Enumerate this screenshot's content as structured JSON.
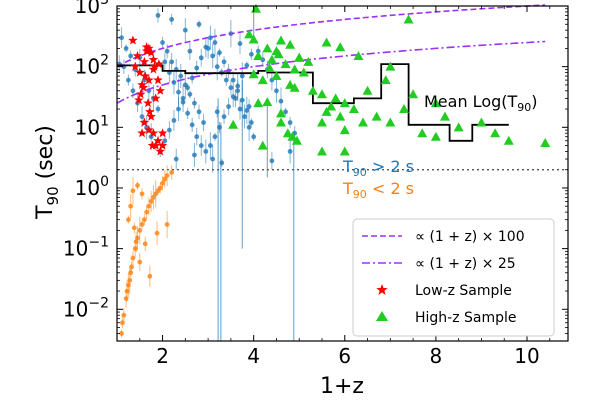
{
  "chart_data": {
    "type": "scatter",
    "xlabel": "1+z",
    "ylabel_main": "T",
    "ylabel_sub": "90",
    "ylabel_unit": " (sec)",
    "xlim": [
      1.0,
      10.9
    ],
    "ylim": [
      0.003,
      1000
    ],
    "yscale": "log",
    "xticks": [
      2,
      4,
      6,
      8,
      10
    ],
    "yticks": [
      {
        "value": 0.01,
        "base": "10",
        "exp": "−2"
      },
      {
        "value": 0.1,
        "base": "10",
        "exp": "−1"
      },
      {
        "value": 1,
        "base": "10",
        "exp": "0"
      },
      {
        "value": 10,
        "base": "10",
        "exp": "1"
      },
      {
        "value": 100,
        "base": "10",
        "exp": "2"
      },
      {
        "value": 1000,
        "base": "10",
        "exp": "3"
      }
    ],
    "threshold": {
      "value": 2
    },
    "annotations": {
      "mean_label": "Mean Log(T",
      "mean_sub": "90",
      "mean_close": ")",
      "above": {
        "pre": "T",
        "sub": "90",
        "post": " > 2 s",
        "color": "#1f77b4"
      },
      "below": {
        "pre": "T",
        "sub": "90",
        "post": " < 2 s",
        "color": "#ff7f0e"
      }
    },
    "legend": {
      "placement": "lower right",
      "entries": [
        {
          "label": "∝ (1 + z) × 100",
          "style": "dashed",
          "color": "#9b30ff"
        },
        {
          "label": "∝ (1 + z) × 25",
          "style": "dashdot",
          "color": "#9b30ff"
        },
        {
          "label": "Low-z Sample",
          "marker": "star",
          "color": "#ff0000"
        },
        {
          "label": "High-z Sample",
          "marker": "triangle",
          "color": "#22cc22"
        }
      ]
    },
    "curves": [
      {
        "name": "∝ (1 + z) × 100",
        "factor": 100,
        "x_from": 1.0,
        "x_to": 10.4,
        "style": "dashed",
        "color": "#9b30ff"
      },
      {
        "name": "∝ (1 + z) × 25",
        "factor": 25,
        "x_from": 1.0,
        "x_to": 10.4,
        "style": "dashdot",
        "color": "#9b30ff"
      }
    ],
    "mean_steps": {
      "color": "#000000",
      "edges": [
        1.0,
        1.5,
        2.0,
        2.5,
        3.0,
        3.5,
        4.1,
        4.3,
        4.8,
        5.3,
        6.2,
        6.8,
        7.4,
        7.6,
        8.3,
        8.8,
        9.1,
        9.6
      ],
      "values": [
        105,
        105,
        85,
        78,
        78,
        78,
        85,
        80,
        80,
        25,
        30,
        110,
        11,
        11,
        6,
        11,
        11
      ]
    },
    "series": [
      {
        "name": "Low-z Sample",
        "marker": "star",
        "color": "#ff0000",
        "points": [
          [
            1.45,
            150
          ],
          [
            1.4,
            100
          ],
          [
            1.5,
            80
          ],
          [
            1.55,
            50
          ],
          [
            1.6,
            120
          ],
          [
            1.65,
            180
          ],
          [
            1.7,
            200
          ],
          [
            1.75,
            170
          ],
          [
            1.8,
            130
          ],
          [
            1.62,
            70
          ],
          [
            1.58,
            45
          ],
          [
            1.52,
            35
          ],
          [
            1.48,
            28
          ],
          [
            1.7,
            60
          ],
          [
            1.82,
            100
          ],
          [
            1.9,
            60
          ],
          [
            1.95,
            40
          ],
          [
            1.85,
            30
          ],
          [
            1.75,
            15
          ],
          [
            1.7,
            9
          ],
          [
            1.6,
            12
          ],
          [
            1.55,
            8
          ],
          [
            1.8,
            8
          ],
          [
            1.9,
            6
          ],
          [
            2.0,
            5
          ],
          [
            1.95,
            4
          ],
          [
            1.85,
            5
          ],
          [
            1.78,
            5
          ],
          [
            1.35,
            270
          ],
          [
            1.8,
            90
          ],
          [
            1.65,
            210
          ],
          [
            2.0,
            8
          ],
          [
            1.92,
            110
          ],
          [
            1.68,
            25
          ],
          [
            1.72,
            18
          ]
        ]
      },
      {
        "name": "High-z Sample",
        "marker": "triangle",
        "color": "#22cc22",
        "points": [
          [
            4.05,
            900
          ],
          [
            4.0,
            280
          ],
          [
            4.3,
            200
          ],
          [
            4.5,
            180
          ],
          [
            4.6,
            270
          ],
          [
            4.8,
            230
          ],
          [
            5.0,
            140
          ],
          [
            5.2,
            120
          ],
          [
            4.1,
            150
          ],
          [
            4.4,
            130
          ],
          [
            4.7,
            110
          ],
          [
            4.9,
            90
          ],
          [
            5.1,
            80
          ],
          [
            4.2,
            60
          ],
          [
            4.5,
            70
          ],
          [
            4.8,
            50
          ],
          [
            5.3,
            40
          ],
          [
            5.5,
            35
          ],
          [
            5.8,
            30
          ],
          [
            6.0,
            25
          ],
          [
            6.2,
            20
          ],
          [
            5.6,
            18
          ],
          [
            5.9,
            15
          ],
          [
            6.4,
            12
          ],
          [
            6.7,
            15
          ],
          [
            7.0,
            12
          ],
          [
            7.3,
            20
          ],
          [
            7.7,
            8
          ],
          [
            8.0,
            7
          ],
          [
            8.5,
            10
          ],
          [
            9.0,
            12
          ],
          [
            9.3,
            8
          ],
          [
            7.4,
            600
          ],
          [
            5.6,
            250
          ],
          [
            5.9,
            210
          ],
          [
            6.3,
            150
          ],
          [
            7.0,
            100
          ],
          [
            6.5,
            40
          ],
          [
            6.0,
            9
          ],
          [
            5.5,
            12
          ],
          [
            5.7,
            22
          ],
          [
            4.6,
            17
          ],
          [
            4.3,
            26
          ],
          [
            4.6,
            12
          ],
          [
            4.9,
            45
          ],
          [
            6.9,
            60
          ],
          [
            7.5,
            35
          ],
          [
            8.0,
            25
          ],
          [
            8.2,
            15
          ],
          [
            9.6,
            6
          ],
          [
            10.4,
            5.5
          ],
          [
            5.0,
            140
          ],
          [
            4.55,
            160
          ],
          [
            4.75,
            8
          ],
          [
            4.85,
            7
          ],
          [
            5.5,
            4
          ],
          [
            6.0,
            4
          ],
          [
            4.2,
            5
          ],
          [
            3.55,
            11
          ],
          [
            3.9,
            340
          ],
          [
            4.1,
            25
          ],
          [
            4.0,
            75
          ],
          [
            4.35,
            95
          ],
          [
            4.95,
            6
          ]
        ]
      },
      {
        "name": "T90 > 2 s",
        "marker": "circle",
        "color": "#1f77b4",
        "points": [
          [
            1.2,
            200
          ],
          [
            1.3,
            150
          ],
          [
            1.4,
            90
          ],
          [
            1.5,
            140
          ],
          [
            1.6,
            60
          ],
          [
            1.7,
            40
          ],
          [
            1.8,
            30
          ],
          [
            1.9,
            20
          ],
          [
            2.0,
            250
          ],
          [
            2.1,
            180
          ],
          [
            2.2,
            120
          ],
          [
            2.3,
            90
          ],
          [
            2.4,
            70
          ],
          [
            2.5,
            50
          ],
          [
            2.6,
            35
          ],
          [
            2.7,
            25
          ],
          [
            2.8,
            18
          ],
          [
            2.9,
            12
          ],
          [
            3.0,
            200
          ],
          [
            3.1,
            150
          ],
          [
            3.2,
            100
          ],
          [
            3.3,
            80
          ],
          [
            3.4,
            60
          ],
          [
            3.5,
            45
          ],
          [
            3.6,
            30
          ],
          [
            3.7,
            20
          ],
          [
            3.8,
            15
          ],
          [
            3.9,
            10
          ],
          [
            4.0,
            7
          ],
          [
            1.25,
            60
          ],
          [
            1.35,
            40
          ],
          [
            1.45,
            25
          ],
          [
            1.55,
            15
          ],
          [
            1.65,
            10
          ],
          [
            1.75,
            7
          ],
          [
            1.85,
            5
          ],
          [
            1.95,
            4
          ],
          [
            2.05,
            6
          ],
          [
            2.15,
            9
          ],
          [
            2.25,
            13
          ],
          [
            2.35,
            20
          ],
          [
            2.45,
            30
          ],
          [
            2.55,
            45
          ],
          [
            2.65,
            65
          ],
          [
            2.75,
            95
          ],
          [
            2.85,
            140
          ],
          [
            2.95,
            210
          ],
          [
            3.05,
            300
          ],
          [
            3.15,
            250
          ],
          [
            3.25,
            170
          ],
          [
            3.35,
            120
          ],
          [
            3.45,
            85
          ],
          [
            3.55,
            60
          ],
          [
            3.65,
            40
          ],
          [
            3.75,
            28
          ],
          [
            3.85,
            19
          ],
          [
            3.95,
            12
          ],
          [
            4.1,
            180
          ],
          [
            4.2,
            130
          ],
          [
            4.3,
            90
          ],
          [
            4.4,
            60
          ],
          [
            4.5,
            40
          ],
          [
            4.6,
            27
          ],
          [
            4.7,
            18
          ],
          [
            4.8,
            12
          ],
          [
            4.9,
            8
          ],
          [
            2.05,
            120
          ],
          [
            2.15,
            80
          ],
          [
            2.25,
            55
          ],
          [
            2.35,
            38
          ],
          [
            2.45,
            26
          ],
          [
            2.55,
            17
          ],
          [
            2.65,
            11
          ],
          [
            2.75,
            7
          ],
          [
            2.85,
            5
          ],
          [
            2.95,
            4
          ],
          [
            3.05,
            5
          ],
          [
            3.15,
            7
          ],
          [
            3.25,
            10
          ],
          [
            3.35,
            15
          ],
          [
            3.45,
            22
          ],
          [
            3.55,
            32
          ],
          [
            3.65,
            48
          ],
          [
            3.75,
            70
          ],
          [
            3.85,
            105
          ],
          [
            3.95,
            160
          ],
          [
            1.15,
            100
          ],
          [
            1.05,
            110
          ],
          [
            1.1,
            300
          ],
          [
            2.5,
            400
          ],
          [
            3.5,
            350
          ],
          [
            2.8,
            500
          ],
          [
            3.2,
            18
          ],
          [
            3.9,
            22
          ],
          [
            4.4,
            2.8
          ],
          [
            2.3,
            3
          ],
          [
            2.7,
            3.5
          ],
          [
            3.1,
            3
          ],
          [
            3.3,
            2.6
          ],
          [
            2.2,
            600
          ],
          [
            1.9,
            700
          ],
          [
            2.6,
            180
          ],
          [
            3.7,
            240
          ],
          [
            4.8,
            4
          ]
        ]
      },
      {
        "name": "T90 < 2 s",
        "marker": "circle",
        "color": "#ff7f0e",
        "points": [
          [
            1.1,
            0.004
          ],
          [
            1.12,
            0.006
          ],
          [
            1.15,
            0.008
          ],
          [
            1.2,
            0.015
          ],
          [
            1.22,
            0.02
          ],
          [
            1.25,
            0.025
          ],
          [
            1.28,
            0.03
          ],
          [
            1.3,
            0.04
          ],
          [
            1.32,
            0.05
          ],
          [
            1.35,
            0.07
          ],
          [
            1.4,
            0.1
          ],
          [
            1.42,
            0.13
          ],
          [
            1.45,
            0.15
          ],
          [
            1.5,
            0.2
          ],
          [
            1.55,
            0.25
          ],
          [
            1.6,
            0.3
          ],
          [
            1.65,
            0.4
          ],
          [
            1.7,
            0.5
          ],
          [
            1.75,
            0.6
          ],
          [
            1.8,
            0.7
          ],
          [
            1.85,
            0.8
          ],
          [
            1.9,
            0.9
          ],
          [
            1.95,
            1.0
          ],
          [
            2.0,
            1.2
          ],
          [
            2.05,
            1.4
          ],
          [
            2.1,
            1.6
          ],
          [
            1.3,
            0.5
          ],
          [
            1.35,
            0.9
          ],
          [
            1.45,
            1.1
          ],
          [
            1.55,
            0.8
          ],
          [
            1.62,
            0.12
          ],
          [
            1.5,
            0.06
          ],
          [
            1.72,
            0.035
          ],
          [
            1.88,
            0.18
          ],
          [
            2.1,
            0.25
          ],
          [
            1.25,
            0.3
          ],
          [
            1.38,
            0.22
          ],
          [
            2.2,
            1.8
          ]
        ]
      }
    ]
  }
}
